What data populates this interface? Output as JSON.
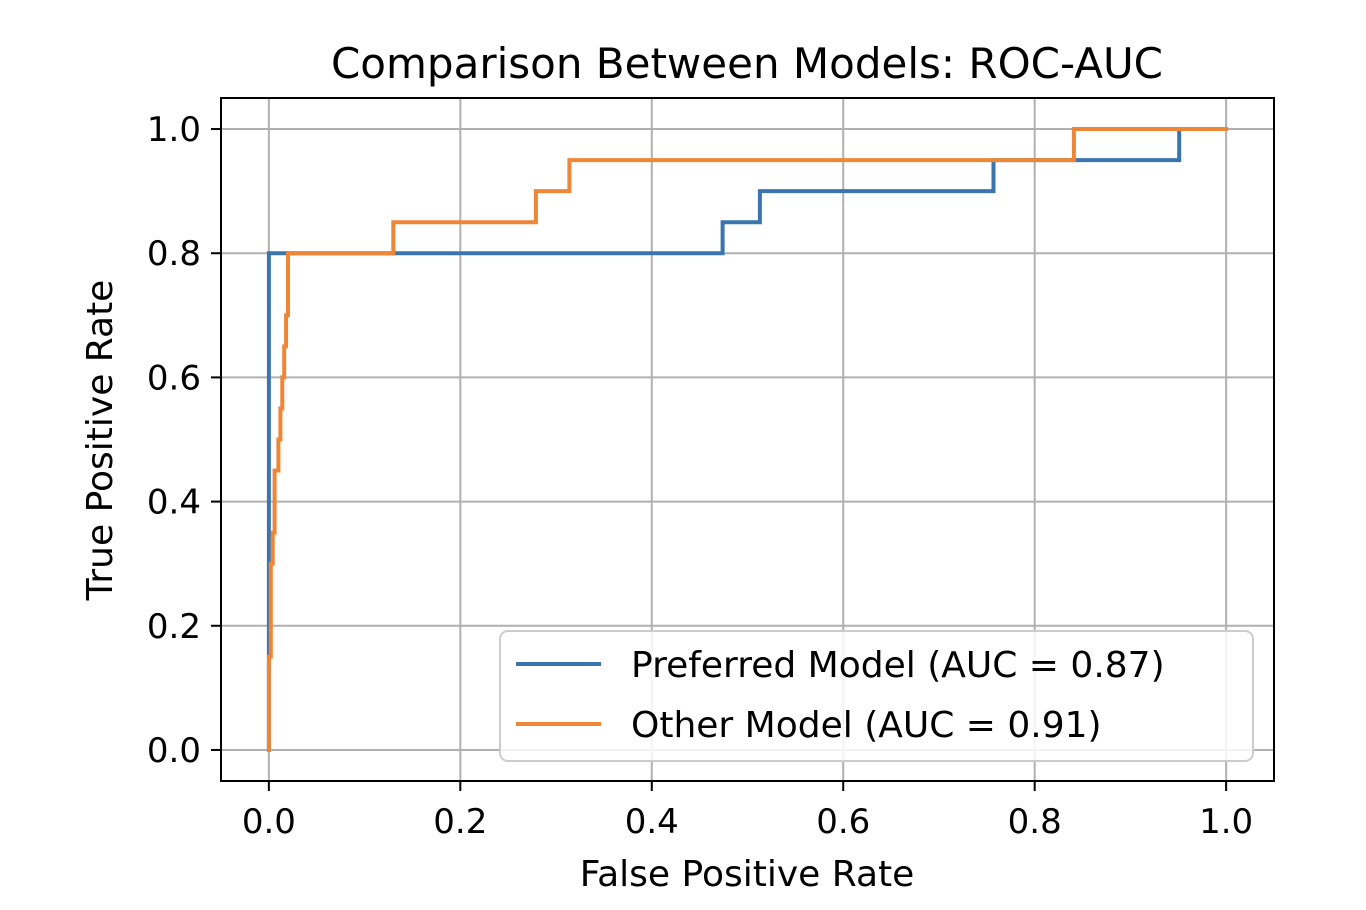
{
  "chart_data": {
    "type": "line",
    "title": "Comparison Between Models: ROC-AUC",
    "xlabel": "False Positive Rate",
    "ylabel": "True Positive Rate",
    "xlim": [
      -0.05,
      1.05
    ],
    "ylim": [
      -0.05,
      1.05
    ],
    "xticks": [
      0.0,
      0.2,
      0.4,
      0.6,
      0.8,
      1.0
    ],
    "xtick_labels": [
      "0.0",
      "0.2",
      "0.4",
      "0.6",
      "0.8",
      "1.0"
    ],
    "yticks": [
      0.0,
      0.2,
      0.4,
      0.6,
      0.8,
      1.0
    ],
    "ytick_labels": [
      "0.0",
      "0.2",
      "0.4",
      "0.6",
      "0.8",
      "1.0"
    ],
    "grid": true,
    "legend_position": "lower-right",
    "series": [
      {
        "name": "Preferred Model (AUC = 0.87)",
        "color": "#3a75b0",
        "x": [
          0.0,
          0.0,
          0.0,
          0.0,
          0.0,
          0.003,
          0.003,
          0.021,
          0.021,
          0.474,
          0.474,
          0.513,
          0.513,
          0.757,
          0.757,
          0.951,
          0.951,
          1.0
        ],
        "y": [
          0.0,
          0.7,
          0.75,
          0.75,
          0.8,
          0.8,
          0.8,
          0.8,
          0.8,
          0.8,
          0.85,
          0.85,
          0.9,
          0.9,
          0.95,
          0.95,
          1.0,
          1.0
        ]
      },
      {
        "name": "Other Model (AUC = 0.91)",
        "color": "#ef8636",
        "x": [
          0.0,
          0.0,
          0.002,
          0.002,
          0.004,
          0.004,
          0.006,
          0.006,
          0.008,
          0.008,
          0.01,
          0.01,
          0.012,
          0.012,
          0.014,
          0.014,
          0.016,
          0.016,
          0.018,
          0.018,
          0.02,
          0.02,
          0.13,
          0.13,
          0.279,
          0.279,
          0.314,
          0.314,
          0.841,
          0.841,
          1.0
        ],
        "y": [
          0.0,
          0.15,
          0.15,
          0.3,
          0.3,
          0.35,
          0.35,
          0.45,
          0.45,
          0.45,
          0.45,
          0.5,
          0.5,
          0.55,
          0.55,
          0.6,
          0.6,
          0.65,
          0.65,
          0.7,
          0.7,
          0.8,
          0.8,
          0.85,
          0.85,
          0.9,
          0.9,
          0.95,
          0.95,
          1.0,
          1.0
        ]
      }
    ]
  }
}
